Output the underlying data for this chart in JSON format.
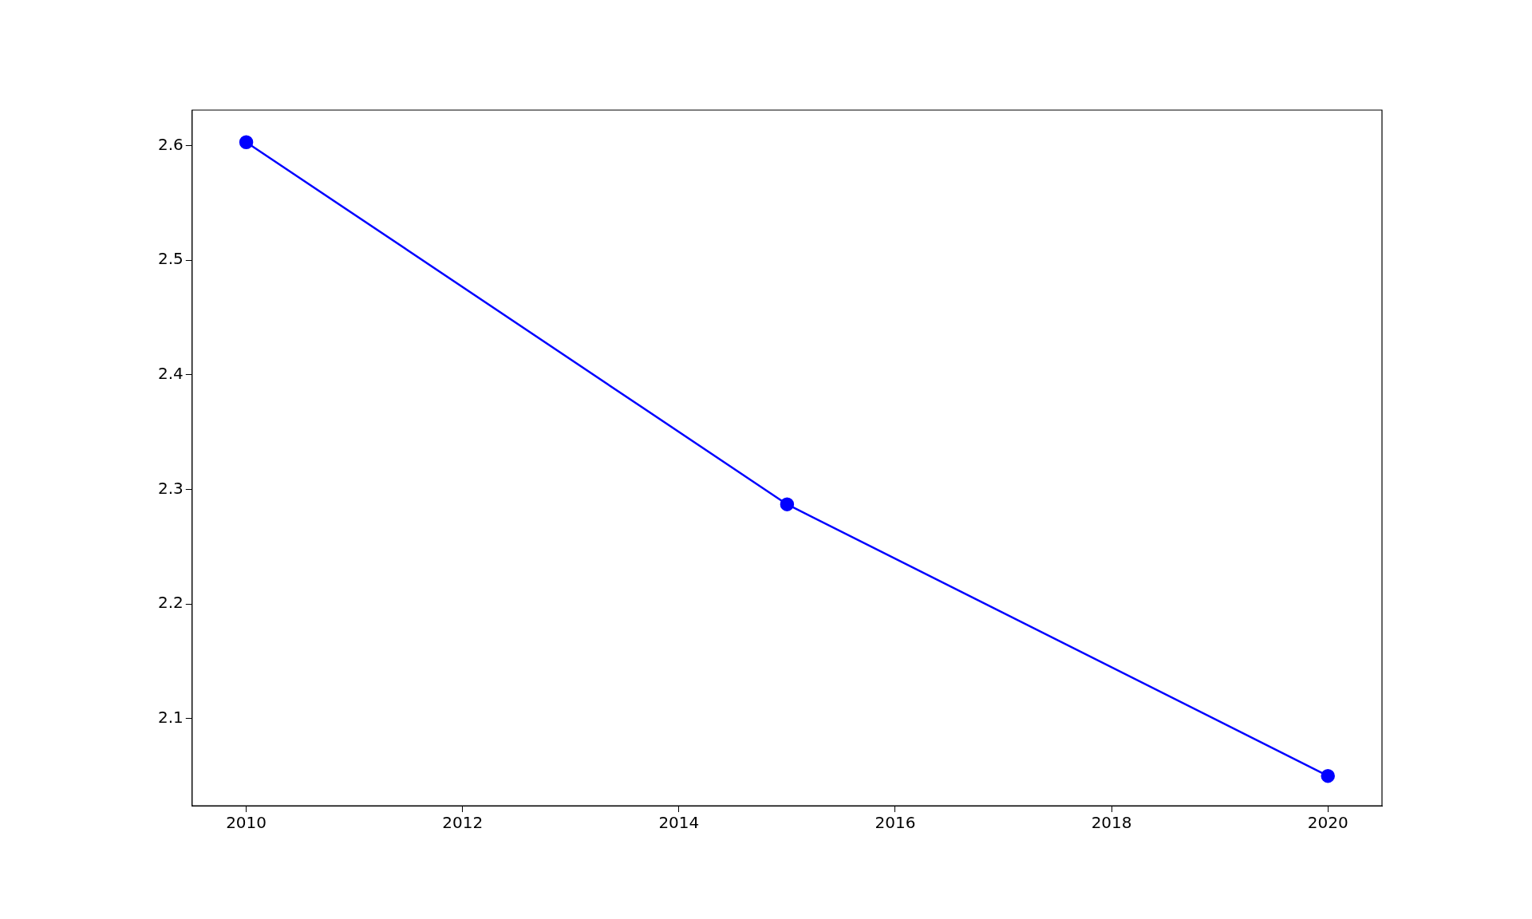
{
  "chart_data": {
    "type": "line",
    "x": [
      2010,
      2015,
      2020
    ],
    "series": [
      {
        "color": "#0000ff",
        "values": [
          2.603,
          2.287,
          2.05
        ]
      }
    ],
    "xlim": [
      2009.5,
      2020.5
    ],
    "xticks": [
      2010,
      2012,
      2014,
      2016,
      2018,
      2020
    ],
    "ylim": [
      2.024,
      2.631
    ],
    "yticks": [
      {
        "value": 2.1,
        "label": "2.1"
      },
      {
        "value": 2.2,
        "label": "2.2"
      },
      {
        "value": 2.3,
        "label": "2.3"
      },
      {
        "value": 2.4,
        "label": "2.4"
      },
      {
        "value": 2.5,
        "label": "2.5"
      },
      {
        "value": 2.6,
        "label": "2.6"
      }
    ],
    "grid": false,
    "legend": false,
    "marker": "circle",
    "line_style": "solid"
  }
}
